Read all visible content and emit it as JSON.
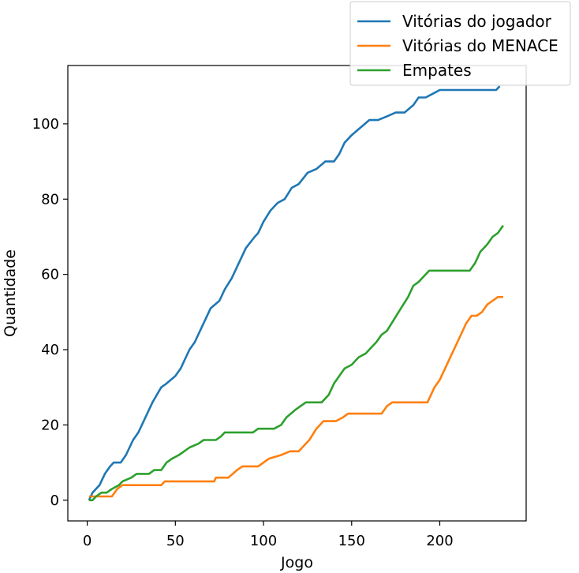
{
  "chart_data": {
    "type": "line",
    "title": "",
    "xlabel": "Jogo",
    "ylabel": "Quantidade",
    "xlim": [
      -11,
      249
    ],
    "ylim": [
      -5.5,
      115.5
    ],
    "xticks": [
      0,
      50,
      100,
      150,
      200
    ],
    "yticks": [
      0,
      20,
      40,
      60,
      80,
      100
    ],
    "grid": false,
    "legend_position": "top-right",
    "series": [
      {
        "name": "Vitórias do jogador",
        "color": "#1f77b4",
        "points": [
          [
            1,
            0
          ],
          [
            3,
            2
          ],
          [
            7,
            4
          ],
          [
            10,
            7
          ],
          [
            13,
            9
          ],
          [
            15,
            10
          ],
          [
            19,
            10
          ],
          [
            22,
            12
          ],
          [
            24,
            14
          ],
          [
            26,
            16
          ],
          [
            29,
            18
          ],
          [
            34,
            23
          ],
          [
            37,
            26
          ],
          [
            42,
            30
          ],
          [
            45,
            31
          ],
          [
            50,
            33
          ],
          [
            53,
            35
          ],
          [
            55,
            37
          ],
          [
            58,
            40
          ],
          [
            61,
            42
          ],
          [
            64,
            45
          ],
          [
            67,
            48
          ],
          [
            70,
            51
          ],
          [
            75,
            53
          ],
          [
            78,
            56
          ],
          [
            82,
            59
          ],
          [
            85,
            62
          ],
          [
            90,
            67
          ],
          [
            95,
            70
          ],
          [
            97,
            71
          ],
          [
            100,
            74
          ],
          [
            104,
            77
          ],
          [
            108,
            79
          ],
          [
            112,
            80
          ],
          [
            116,
            83
          ],
          [
            120,
            84
          ],
          [
            125,
            87
          ],
          [
            130,
            88
          ],
          [
            135,
            90
          ],
          [
            140,
            90
          ],
          [
            143,
            92
          ],
          [
            146,
            95
          ],
          [
            150,
            97
          ],
          [
            155,
            99
          ],
          [
            160,
            101
          ],
          [
            165,
            101
          ],
          [
            170,
            102
          ],
          [
            175,
            103
          ],
          [
            180,
            103
          ],
          [
            185,
            105
          ],
          [
            188,
            107
          ],
          [
            192,
            107
          ],
          [
            196,
            108
          ],
          [
            200,
            109
          ],
          [
            210,
            109
          ],
          [
            220,
            109
          ],
          [
            232,
            109
          ],
          [
            234,
            110
          ]
        ]
      },
      {
        "name": "Vitórias do MENACE",
        "color": "#ff7f0e",
        "points": [
          [
            1,
            1
          ],
          [
            14,
            1
          ],
          [
            17,
            3
          ],
          [
            20,
            4
          ],
          [
            35,
            4
          ],
          [
            42,
            4
          ],
          [
            44,
            5
          ],
          [
            60,
            5
          ],
          [
            72,
            5
          ],
          [
            73,
            6
          ],
          [
            80,
            6
          ],
          [
            85,
            8
          ],
          [
            88,
            9
          ],
          [
            97,
            9
          ],
          [
            100,
            10
          ],
          [
            103,
            11
          ],
          [
            110,
            12
          ],
          [
            115,
            13
          ],
          [
            120,
            13
          ],
          [
            122,
            14
          ],
          [
            126,
            16
          ],
          [
            130,
            19
          ],
          [
            134,
            21
          ],
          [
            141,
            21
          ],
          [
            145,
            22
          ],
          [
            148,
            23
          ],
          [
            160,
            23
          ],
          [
            167,
            23
          ],
          [
            170,
            25
          ],
          [
            173,
            26
          ],
          [
            183,
            26
          ],
          [
            193,
            26
          ],
          [
            197,
            30
          ],
          [
            200,
            32
          ],
          [
            203,
            35
          ],
          [
            206,
            38
          ],
          [
            209,
            41
          ],
          [
            212,
            44
          ],
          [
            215,
            47
          ],
          [
            218,
            49
          ],
          [
            221,
            49
          ],
          [
            224,
            50
          ],
          [
            227,
            52
          ],
          [
            230,
            53
          ],
          [
            233,
            54
          ],
          [
            236,
            54
          ]
        ]
      },
      {
        "name": "Empates",
        "color": "#2ca02c",
        "points": [
          [
            1,
            0
          ],
          [
            3,
            0
          ],
          [
            5,
            1
          ],
          [
            8,
            2
          ],
          [
            11,
            2
          ],
          [
            14,
            3
          ],
          [
            18,
            4
          ],
          [
            20,
            5
          ],
          [
            25,
            6
          ],
          [
            28,
            7
          ],
          [
            35,
            7
          ],
          [
            38,
            8
          ],
          [
            42,
            8
          ],
          [
            45,
            10
          ],
          [
            48,
            11
          ],
          [
            52,
            12
          ],
          [
            55,
            13
          ],
          [
            58,
            14
          ],
          [
            63,
            15
          ],
          [
            66,
            16
          ],
          [
            73,
            16
          ],
          [
            76,
            17
          ],
          [
            78,
            18
          ],
          [
            94,
            18
          ],
          [
            97,
            19
          ],
          [
            106,
            19
          ],
          [
            110,
            20
          ],
          [
            113,
            22
          ],
          [
            118,
            24
          ],
          [
            121,
            25
          ],
          [
            124,
            26
          ],
          [
            133,
            26
          ],
          [
            137,
            28
          ],
          [
            140,
            31
          ],
          [
            143,
            33
          ],
          [
            146,
            35
          ],
          [
            150,
            36
          ],
          [
            154,
            38
          ],
          [
            158,
            39
          ],
          [
            160,
            40
          ],
          [
            164,
            42
          ],
          [
            167,
            44
          ],
          [
            170,
            45
          ],
          [
            174,
            48
          ],
          [
            178,
            51
          ],
          [
            182,
            54
          ],
          [
            185,
            57
          ],
          [
            188,
            58
          ],
          [
            190,
            59
          ],
          [
            194,
            61
          ],
          [
            200,
            61
          ],
          [
            206,
            61
          ],
          [
            212,
            61
          ],
          [
            217,
            61
          ],
          [
            220,
            63
          ],
          [
            223,
            66
          ],
          [
            227,
            68
          ],
          [
            230,
            70
          ],
          [
            233,
            71
          ],
          [
            236,
            73
          ]
        ]
      }
    ]
  }
}
